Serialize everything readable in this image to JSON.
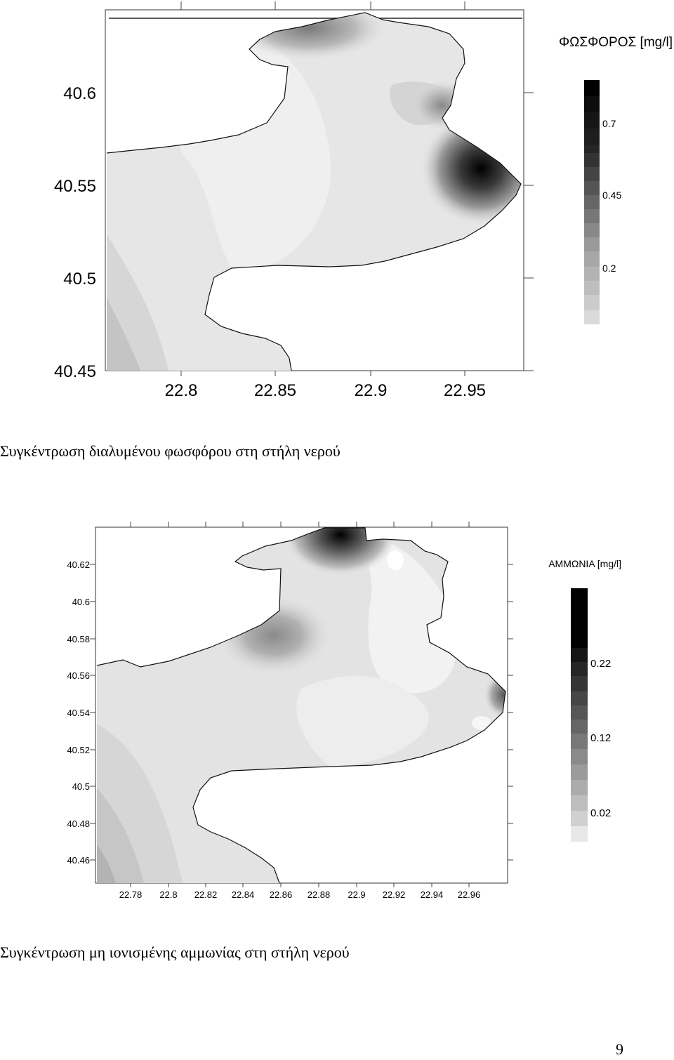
{
  "map1": {
    "title": "ΦΩΣΦΟΡΟΣ [mg/l]",
    "y_ticks": [
      "40.6",
      "40.55",
      "40.5",
      "40.45"
    ],
    "x_ticks": [
      "22.8",
      "22.85",
      "22.9",
      "22.95"
    ],
    "colorbar_labels": [
      "0.7",
      "0.45",
      "0.2"
    ],
    "caption": "Συγκέντρωση διαλυμένου φωσφόρου στη στήλη νερού"
  },
  "map2": {
    "title": "ΑΜΜΩΝΙΑ [mg/l]",
    "y_ticks": [
      "40.62",
      "40.6",
      "40.58",
      "40.56",
      "40.54",
      "40.52",
      "40.5",
      "40.48",
      "40.46"
    ],
    "x_ticks": [
      "22.78",
      "22.8",
      "22.82",
      "22.84",
      "22.86",
      "22.88",
      "22.9",
      "22.92",
      "22.94",
      "22.96"
    ],
    "colorbar_labels": [
      "0.22",
      "0.12",
      "0.02"
    ],
    "caption": "Συγκέντρωση μη ιονισμένης αμμωνίας στη στήλη νερού"
  },
  "page_number": "9"
}
